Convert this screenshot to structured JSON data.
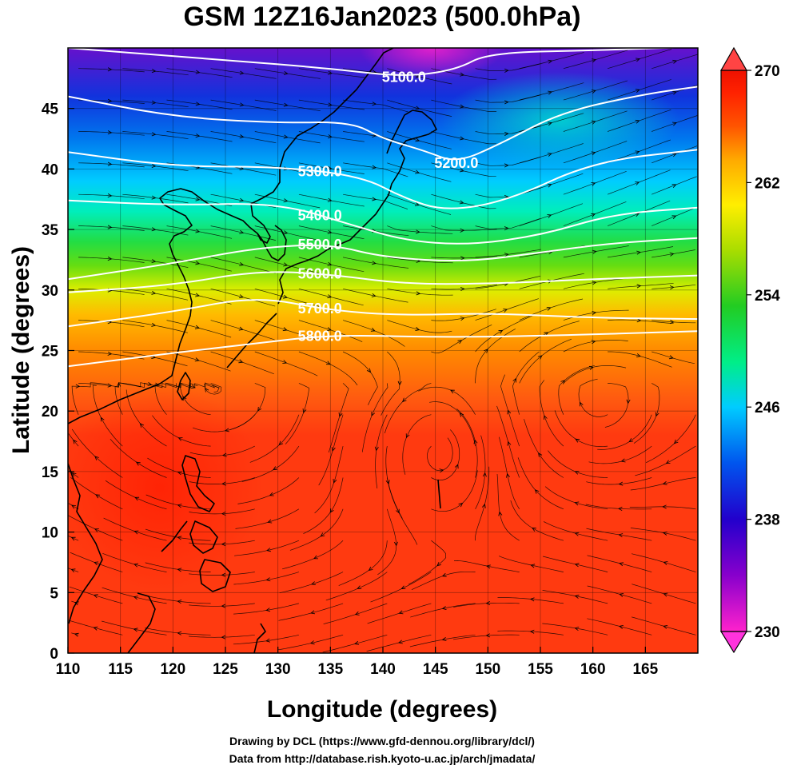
{
  "title": "GSM 12Z16Jan2023 (500.0hPa)",
  "x_axis": {
    "label": "Longitude (degrees)",
    "range": [
      110,
      170
    ],
    "ticks": [
      110,
      115,
      120,
      125,
      130,
      135,
      140,
      145,
      150,
      155,
      160,
      165
    ]
  },
  "y_axis": {
    "label": "Latitude  (degrees)",
    "range": [
      0,
      50
    ],
    "ticks": [
      0,
      5,
      10,
      15,
      20,
      25,
      30,
      35,
      40,
      45
    ]
  },
  "colorbar": {
    "range": [
      230,
      270
    ],
    "ticks": [
      230,
      238,
      246,
      254,
      262,
      270
    ],
    "colors": [
      "#ff22cc",
      "#8800cc",
      "#2200cc",
      "#0055ee",
      "#00ccff",
      "#00ee88",
      "#22cc22",
      "#aadd00",
      "#ffee00",
      "#ffaa00",
      "#ff5500",
      "#ff2200",
      "#ee1100"
    ]
  },
  "contours": [
    {
      "label": "5100.0",
      "pts": [
        [
          110,
          50.0
        ],
        [
          125,
          49.0
        ],
        [
          135,
          48.3
        ],
        [
          142,
          47.6
        ],
        [
          147,
          48.2
        ],
        [
          150,
          49.6
        ],
        [
          160,
          49.8
        ],
        [
          170,
          50.1
        ]
      ]
    },
    {
      "label": "5200.0",
      "pts": [
        [
          110,
          46.0
        ],
        [
          120,
          44.3
        ],
        [
          130,
          43.8
        ],
        [
          137,
          43.9
        ],
        [
          140,
          42.5
        ],
        [
          144,
          41.5
        ],
        [
          147,
          40.5
        ],
        [
          151,
          42.0
        ],
        [
          157,
          44.7
        ],
        [
          165,
          46.2
        ],
        [
          170,
          46.8
        ]
      ]
    },
    {
      "label": "5300.0",
      "pts": [
        [
          110,
          41.4
        ],
        [
          120,
          40.2
        ],
        [
          130,
          40.2
        ],
        [
          138,
          39.4
        ],
        [
          142,
          37.6
        ],
        [
          146,
          36.5
        ],
        [
          152,
          37.4
        ],
        [
          160,
          40.6
        ],
        [
          170,
          41.6
        ]
      ]
    },
    {
      "label": "5400.0",
      "pts": [
        [
          110,
          37.4
        ],
        [
          120,
          37.0
        ],
        [
          130,
          37.2
        ],
        [
          137,
          35.4
        ],
        [
          142,
          34.1
        ],
        [
          148,
          33.7
        ],
        [
          155,
          34.5
        ],
        [
          162,
          36.3
        ],
        [
          170,
          36.8
        ]
      ]
    },
    {
      "label": "5500.0",
      "pts": [
        [
          110,
          30.9
        ],
        [
          120,
          32.2
        ],
        [
          128,
          33.5
        ],
        [
          135,
          33.8
        ],
        [
          140,
          32.7
        ],
        [
          148,
          32.3
        ],
        [
          155,
          33.1
        ],
        [
          162,
          33.9
        ],
        [
          170,
          34.3
        ]
      ]
    },
    {
      "label": "5600.0",
      "pts": [
        [
          110,
          29.8
        ],
        [
          120,
          30.4
        ],
        [
          128,
          31.6
        ],
        [
          135,
          31.3
        ],
        [
          142,
          30.5
        ],
        [
          150,
          30.5
        ],
        [
          160,
          30.9
        ],
        [
          170,
          31.2
        ]
      ]
    },
    {
      "label": "5700.0",
      "pts": [
        [
          110,
          27.0
        ],
        [
          120,
          28.2
        ],
        [
          128,
          29.5
        ],
        [
          135,
          28.3
        ],
        [
          142,
          27.9
        ],
        [
          150,
          28.1
        ],
        [
          160,
          27.7
        ],
        [
          170,
          27.6
        ]
      ]
    },
    {
      "label": "5800.0",
      "pts": [
        [
          110,
          23.7
        ],
        [
          120,
          24.8
        ],
        [
          128,
          25.6
        ],
        [
          135,
          26.3
        ],
        [
          145,
          26.1
        ],
        [
          155,
          26.2
        ],
        [
          170,
          26.6
        ]
      ]
    }
  ],
  "credits": [
    "Drawing by DCL (https://www.gfd-dennou.org/library/dcl/)",
    "Data from http://database.rish.kyoto-u.ac.jp/arch/jmadata/"
  ]
}
